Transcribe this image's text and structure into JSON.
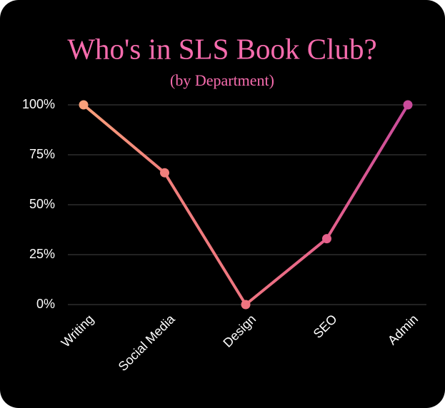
{
  "chart_data": {
    "type": "line",
    "title": "Who's in SLS Book Club?",
    "subtitle": "(by Department)",
    "categories": [
      "Writing",
      "Social Media",
      "Design",
      "SEO",
      "Admin"
    ],
    "values": [
      100,
      66,
      0,
      33,
      100
    ],
    "point_colors": [
      "#f9a07a",
      "#f17f7c",
      "#ef7580",
      "#e5618b",
      "#c94b9b"
    ],
    "title_color": "#f76cae",
    "ylim": [
      0,
      100
    ],
    "yticks": [
      {
        "value": 0,
        "label": "0%"
      },
      {
        "value": 25,
        "label": "25%"
      },
      {
        "value": 50,
        "label": "50%"
      },
      {
        "value": 75,
        "label": "75%"
      },
      {
        "value": 100,
        "label": "100%"
      }
    ],
    "grid": true
  }
}
